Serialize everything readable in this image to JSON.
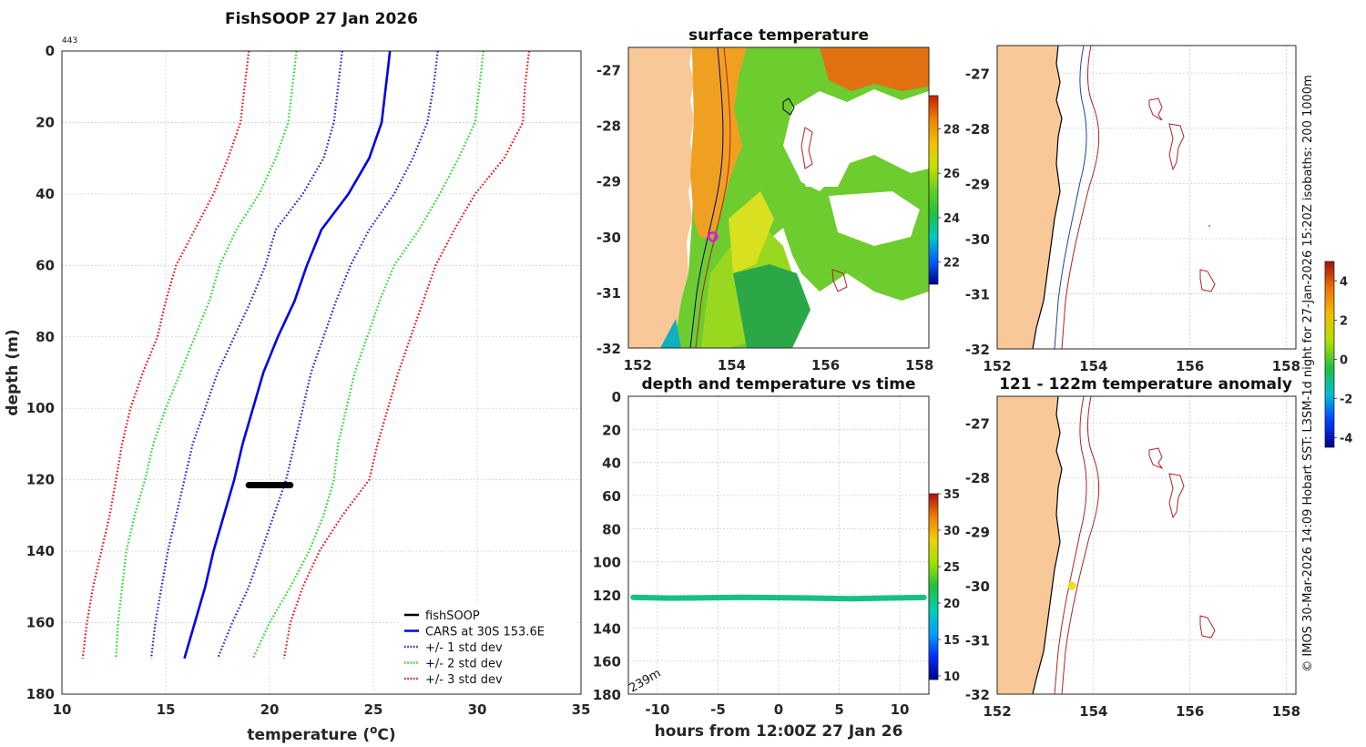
{
  "credit": "© IMOS 30-Mar-2026 14:09 Hobart SST: L3SM-1d night for 27-Jan-2026 15:20Z isobaths: 200  1000m",
  "colors": {
    "cars_mean": "#0000ee",
    "std1": "#2020dd",
    "std2": "#22dd22",
    "std3": "#ee1111",
    "fishsoop": "#000000",
    "land": "#f8c898",
    "isobath_200": "#000080",
    "isobath_1000": "#b22222",
    "marker_magenta": "#ff00ff",
    "marker_yellow": "#e8e020"
  },
  "chart_data": [
    {
      "id": "profile",
      "type": "line",
      "title": "FishSOOP 27 Jan 2026",
      "corner_label": "443",
      "xlabel": "temperature (",
      "xlabel_sup": "o",
      "xlabel_end": "C)",
      "ylabel": "depth (m)",
      "xlim": [
        10,
        35
      ],
      "ylim": [
        0,
        180
      ],
      "xticks": [
        10,
        15,
        20,
        25,
        30,
        35
      ],
      "yticks": [
        0,
        20,
        40,
        60,
        80,
        100,
        120,
        140,
        160,
        180
      ],
      "depths": [
        0,
        5,
        10,
        20,
        30,
        40,
        50,
        60,
        70,
        80,
        90,
        100,
        110,
        120,
        130,
        140,
        150,
        160,
        170
      ],
      "series": [
        {
          "name": "CARS at 30S 153.6E",
          "style": "solid",
          "key": "cars_mean",
          "values": [
            25.8,
            25.7,
            25.6,
            25.4,
            24.8,
            23.8,
            22.5,
            21.8,
            21.2,
            20.4,
            19.7,
            19.2,
            18.7,
            18.3,
            17.8,
            17.3,
            16.9,
            16.4,
            15.9
          ]
        },
        {
          "name": "+1 std",
          "style": "dotted",
          "key": "std1",
          "values": [
            28.1,
            28.0,
            27.9,
            27.6,
            26.9,
            26.0,
            24.8,
            23.9,
            23.2,
            22.6,
            22.0,
            21.6,
            21.2,
            20.8,
            20.2,
            19.6,
            19.0,
            18.2,
            17.5
          ]
        },
        {
          "name": "-1 std",
          "style": "dotted",
          "key": "std1",
          "values": [
            23.5,
            23.4,
            23.3,
            23.1,
            22.6,
            21.6,
            20.3,
            19.8,
            19.1,
            18.3,
            17.5,
            16.9,
            16.3,
            15.9,
            15.5,
            15.1,
            14.8,
            14.5,
            14.3
          ]
        },
        {
          "name": "+2 std",
          "style": "dotted",
          "key": "std2",
          "values": [
            30.3,
            30.2,
            30.1,
            29.9,
            29.1,
            28.2,
            27.2,
            26.0,
            25.3,
            24.7,
            24.1,
            23.7,
            23.3,
            23.1,
            22.6,
            21.9,
            21.0,
            20.0,
            19.2
          ]
        },
        {
          "name": "-2 std",
          "style": "dotted",
          "key": "std2",
          "values": [
            21.3,
            21.2,
            21.1,
            20.9,
            20.3,
            19.5,
            18.4,
            17.6,
            17.1,
            16.4,
            15.7,
            15.0,
            14.4,
            14.0,
            13.5,
            13.1,
            12.9,
            12.7,
            12.6
          ]
        },
        {
          "name": "+3 std",
          "style": "dotted",
          "key": "std3",
          "values": [
            32.5,
            32.4,
            32.3,
            32.2,
            31.3,
            29.9,
            28.9,
            28.0,
            27.4,
            26.8,
            26.2,
            25.7,
            25.2,
            24.8,
            23.5,
            22.4,
            21.6,
            21.0,
            20.7
          ]
        },
        {
          "name": "-3 std",
          "style": "dotted",
          "key": "std3",
          "values": [
            19.0,
            18.9,
            18.8,
            18.6,
            18.0,
            17.3,
            16.4,
            15.5,
            15.0,
            14.6,
            13.9,
            13.3,
            12.9,
            12.6,
            12.3,
            11.9,
            11.5,
            11.2,
            11.0
          ]
        }
      ],
      "fishsoop_segment": {
        "temp_min": 19.0,
        "temp_max": 21.0,
        "depth": 121.5
      },
      "legend": [
        {
          "label": "fishSOOP",
          "key": "fishsoop",
          "style": "solid"
        },
        {
          "label": "CARS at 30S 153.6E",
          "key": "cars_mean",
          "style": "solid"
        },
        {
          "label": "+/- 1 std dev",
          "key": "std1",
          "style": "dotted"
        },
        {
          "label": "+/- 2 std dev",
          "key": "std2",
          "style": "dotted"
        },
        {
          "label": "+/- 3 std dev",
          "key": "std3",
          "style": "dotted"
        }
      ]
    },
    {
      "id": "sst_map",
      "type": "heatmap",
      "title": "surface temperature",
      "xlim": [
        151.8,
        158.2
      ],
      "ylim": [
        -32,
        -26.6
      ],
      "xticks": [
        152,
        154,
        156,
        158
      ],
      "yticks": [
        -27,
        -28,
        -29,
        -30,
        -31,
        -32
      ],
      "colorbar": {
        "range": [
          21,
          29.5
        ],
        "ticks": [
          22,
          24,
          26,
          28
        ],
        "stops": [
          "#00008f",
          "#0060ff",
          "#00c8c8",
          "#20c040",
          "#60d020",
          "#c8e000",
          "#f0c000",
          "#f08000",
          "#c82000"
        ]
      },
      "sample_position": {
        "lon": 153.6,
        "lat": -30.0
      }
    },
    {
      "id": "time_series",
      "type": "scatter",
      "title": "depth and temperature vs time",
      "xlabel": "hours from 12:00Z 27 Jan 26",
      "xlim": [
        -12.4,
        12.4
      ],
      "ylim": [
        0,
        180
      ],
      "xticks": [
        -10,
        -5,
        0,
        5,
        10
      ],
      "yticks": [
        0,
        20,
        40,
        60,
        80,
        100,
        120,
        140,
        160,
        180
      ],
      "annotation": "239m",
      "track": {
        "hours": [
          -12,
          -9,
          -6,
          -3,
          0,
          3,
          6,
          9,
          12
        ],
        "depth": [
          121.5,
          122.0,
          121.8,
          121.5,
          121.7,
          122.0,
          122.3,
          121.9,
          121.6
        ],
        "temperature": 20.5
      },
      "colorbar": {
        "range": [
          9.5,
          35
        ],
        "ticks": [
          10,
          15,
          20,
          25,
          30,
          35
        ],
        "stops": [
          "#00008f",
          "#0030ff",
          "#00a0ff",
          "#00d0b0",
          "#20c040",
          "#a0e000",
          "#f0d000",
          "#f08000",
          "#b01010"
        ]
      }
    },
    {
      "id": "isobath_map",
      "type": "line",
      "title": "",
      "xlim": [
        152,
        158.2
      ],
      "ylim": [
        -32,
        -26.5
      ],
      "xticks": [
        152,
        154,
        156,
        158
      ],
      "yticks": [
        -27,
        -28,
        -29,
        -30,
        -31,
        -32
      ]
    },
    {
      "id": "anomaly_map",
      "type": "scatter",
      "title": "121 - 122m temperature anomaly",
      "xlim": [
        152,
        158.2
      ],
      "ylim": [
        -32,
        -26.5
      ],
      "xticks": [
        152,
        154,
        156,
        158
      ],
      "yticks": [
        -27,
        -28,
        -29,
        -30,
        -31,
        -32
      ],
      "points": [
        {
          "lon": 153.55,
          "lat": -30.0,
          "anomaly": 2.3
        }
      ],
      "colorbar": {
        "range": [
          -4.5,
          5.0
        ],
        "ticks": [
          -4,
          -2,
          0,
          2,
          4
        ],
        "stops": [
          "#00008f",
          "#0040ff",
          "#00c0d0",
          "#20c040",
          "#b0e000",
          "#f0c000",
          "#f07000",
          "#a01010"
        ]
      }
    }
  ]
}
